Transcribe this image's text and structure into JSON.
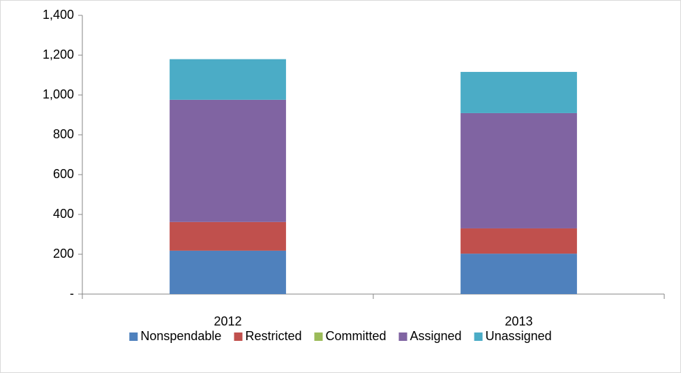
{
  "chart_data": {
    "type": "stacked_bar",
    "categories": [
      "2012",
      "2013"
    ],
    "series": [
      {
        "name": "Nonspendable",
        "color": "#4f81bd",
        "values": [
          218,
          203
        ]
      },
      {
        "name": "Restricted",
        "color": "#c0504d",
        "values": [
          144,
          127
        ]
      },
      {
        "name": "Committed",
        "color": "#9bbb59",
        "values": [
          0,
          0
        ]
      },
      {
        "name": "Assigned",
        "color": "#8064a2",
        "values": [
          614,
          579
        ]
      },
      {
        "name": "Unassigned",
        "color": "#4bacc6",
        "values": [
          204,
          207
        ]
      }
    ],
    "ylim": [
      0,
      1400
    ],
    "yticks": [
      {
        "value": 0,
        "label": "-"
      },
      200,
      400,
      600,
      800,
      {
        "value": 1000,
        "label": "1,000"
      },
      {
        "value": 1200,
        "label": "1,200"
      },
      {
        "value": 1400,
        "label": "1,400"
      }
    ],
    "grid": false,
    "legend": "bottom"
  }
}
